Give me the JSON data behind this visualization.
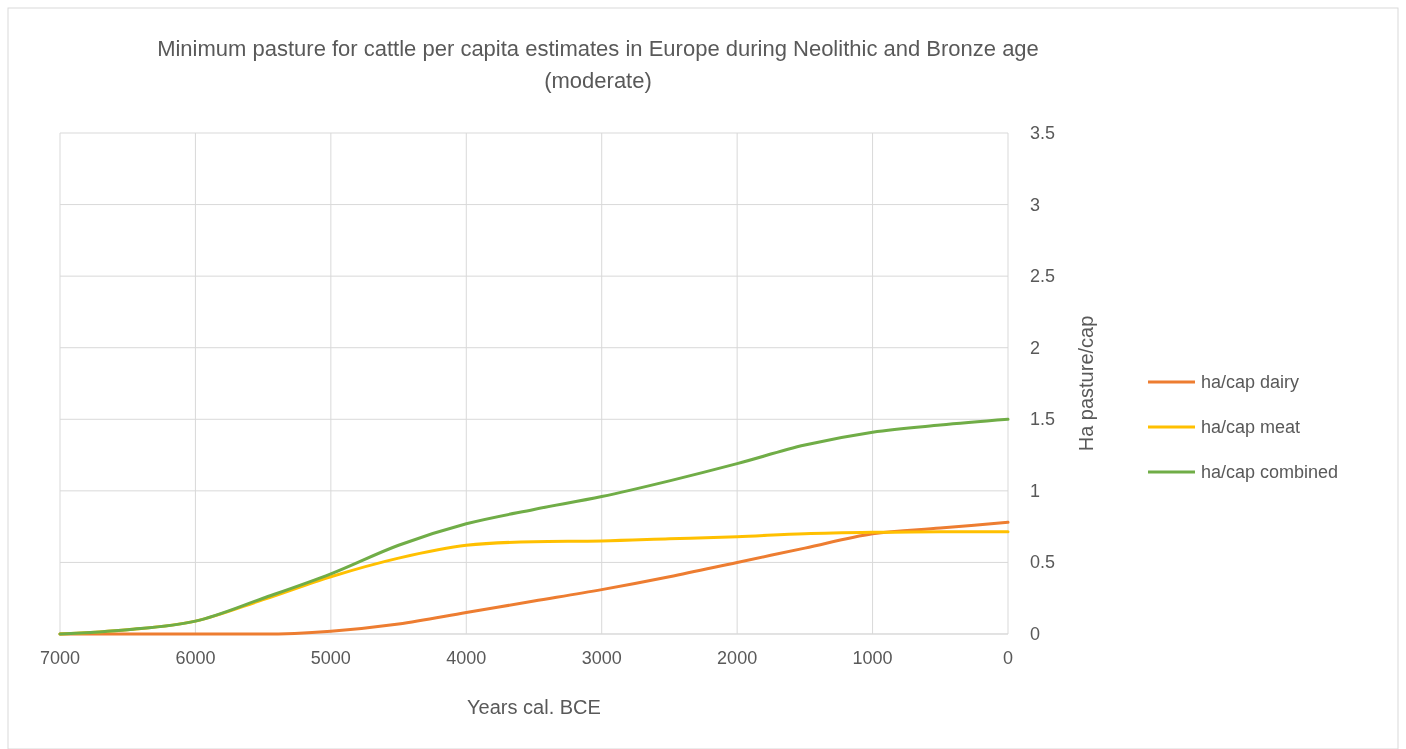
{
  "chart_data": {
    "type": "line",
    "title": "Minimum pasture for cattle per capita estimates in Europe during Neolithic and Bronze age (moderate)",
    "xlabel": "Years cal. BCE",
    "ylabel": "Ha pasture/cap",
    "x": [
      7000,
      6500,
      6000,
      5500,
      5000,
      4500,
      4000,
      3500,
      3000,
      2500,
      2000,
      1500,
      1000,
      500,
      0
    ],
    "series": [
      {
        "name": "ha/cap dairy",
        "color": "#ed7d31",
        "values": [
          0,
          0,
          0,
          0,
          0.02,
          0.07,
          0.15,
          0.23,
          0.31,
          0.4,
          0.5,
          0.6,
          0.7,
          0.74,
          0.78
        ]
      },
      {
        "name": "ha/cap meat",
        "color": "#ffc000",
        "values": [
          0,
          0.03,
          0.09,
          0.24,
          0.4,
          0.53,
          0.62,
          0.645,
          0.65,
          0.665,
          0.68,
          0.7,
          0.71,
          0.715,
          0.715
        ]
      },
      {
        "name": "ha/cap combined",
        "color": "#70ad47",
        "values": [
          0,
          0.03,
          0.09,
          0.25,
          0.42,
          0.62,
          0.77,
          0.87,
          0.96,
          1.07,
          1.19,
          1.32,
          1.41,
          1.46,
          1.5
        ]
      }
    ],
    "xlim": [
      7000,
      0
    ],
    "xticks": [
      7000,
      6000,
      5000,
      4000,
      3000,
      2000,
      1000,
      0
    ],
    "ylim": [
      0,
      3.5
    ],
    "yticks": [
      0,
      0.5,
      1,
      1.5,
      2,
      2.5,
      3,
      3.5
    ],
    "grid": true,
    "legend": "right",
    "marker": "none",
    "line_style": "solid"
  }
}
